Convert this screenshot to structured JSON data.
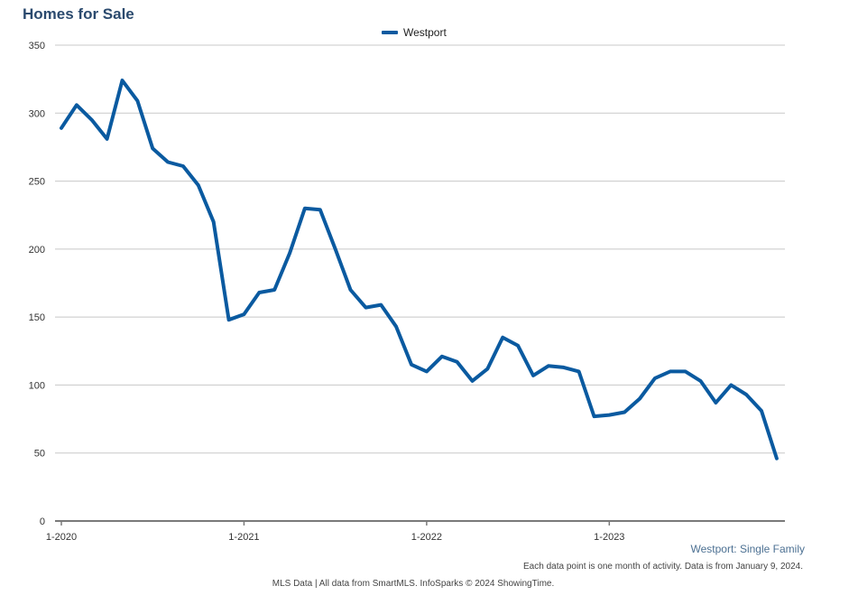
{
  "title": "Homes for Sale",
  "subtitle": "Westport: Single Family",
  "footnote": "Each data point is one month of activity. Data is from January 9, 2024.",
  "source": "MLS Data | All data from SmartMLS. InfoSparks © 2024 ShowingTime.",
  "colors": {
    "series": "#0a5aa0",
    "grid": "#c8c8c8",
    "axis": "#7a7a7a",
    "title": "#2b4a6e"
  },
  "chart_data": {
    "type": "line",
    "title": "Homes for Sale",
    "xlabel": "",
    "ylabel": "",
    "ylim": [
      0,
      350
    ],
    "y_ticks": [
      0,
      50,
      100,
      150,
      200,
      250,
      300,
      350
    ],
    "x_tick_labels": [
      "1-2020",
      "1-2021",
      "1-2022",
      "1-2023"
    ],
    "grid": true,
    "legend_position": "top-center",
    "x": [
      "2020-01",
      "2020-02",
      "2020-03",
      "2020-04",
      "2020-05",
      "2020-06",
      "2020-07",
      "2020-08",
      "2020-09",
      "2020-10",
      "2020-11",
      "2020-12",
      "2021-01",
      "2021-02",
      "2021-03",
      "2021-04",
      "2021-05",
      "2021-06",
      "2021-07",
      "2021-08",
      "2021-09",
      "2021-10",
      "2021-11",
      "2021-12",
      "2022-01",
      "2022-02",
      "2022-03",
      "2022-04",
      "2022-05",
      "2022-06",
      "2022-07",
      "2022-08",
      "2022-09",
      "2022-10",
      "2022-11",
      "2022-12",
      "2023-01",
      "2023-02",
      "2023-03",
      "2023-04",
      "2023-05",
      "2023-06",
      "2023-07",
      "2023-08",
      "2023-09",
      "2023-10",
      "2023-11",
      "2023-12"
    ],
    "series": [
      {
        "name": "Westport",
        "values": [
          289,
          306,
          295,
          281,
          324,
          309,
          274,
          264,
          261,
          247,
          220,
          148,
          152,
          168,
          170,
          197,
          230,
          229,
          200,
          170,
          157,
          159,
          143,
          115,
          110,
          121,
          117,
          103,
          112,
          135,
          129,
          107,
          114,
          113,
          110,
          77,
          78,
          80,
          90,
          105,
          110,
          110,
          103,
          87,
          100,
          93,
          81,
          46
        ]
      }
    ]
  }
}
